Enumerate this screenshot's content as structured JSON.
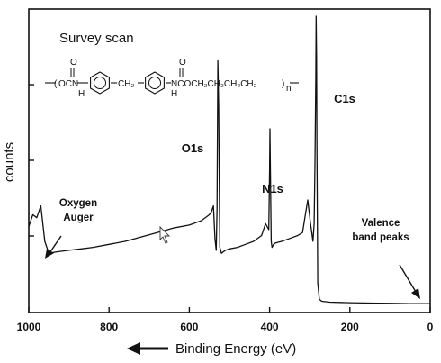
{
  "chart_data": {
    "type": "line",
    "title": "Survey scan",
    "xlabel": "Binding Energy (eV)",
    "ylabel": "counts",
    "xlim": [
      1000,
      0
    ],
    "x_reversed": true,
    "x_ticks": [
      1000,
      800,
      600,
      400,
      200,
      0
    ],
    "grid": false,
    "formula": "—(OCN—⌬—CH₂—⌬—NCOCH₂CH₂CH₂CH₂)ₙ—",
    "series": [
      {
        "x": [
          1000,
          990,
          980,
          975,
          970,
          965,
          960,
          950,
          930,
          900,
          870,
          840,
          800,
          760,
          720,
          680,
          640,
          600,
          570,
          550,
          545,
          540,
          536,
          533,
          531,
          529,
          527,
          524,
          520,
          510,
          500,
          480,
          460,
          440,
          420,
          410,
          402,
          400,
          399,
          398,
          396,
          394,
          390,
          385,
          370,
          350,
          330,
          318,
          312,
          305,
          298,
          292,
          289,
          287,
          285,
          284,
          283,
          282,
          280,
          276,
          270,
          250,
          200,
          150,
          100,
          50,
          0
        ],
        "y": [
          0.29,
          0.33,
          0.32,
          0.34,
          0.36,
          0.3,
          0.24,
          0.2,
          0.205,
          0.21,
          0.215,
          0.22,
          0.23,
          0.24,
          0.255,
          0.27,
          0.285,
          0.295,
          0.31,
          0.33,
          0.34,
          0.36,
          0.25,
          0.21,
          0.35,
          0.85,
          0.7,
          0.22,
          0.2,
          0.21,
          0.215,
          0.22,
          0.23,
          0.24,
          0.26,
          0.3,
          0.28,
          0.48,
          0.62,
          0.48,
          0.24,
          0.22,
          0.23,
          0.235,
          0.24,
          0.25,
          0.26,
          0.27,
          0.32,
          0.38,
          0.3,
          0.24,
          0.3,
          0.5,
          0.78,
          1.0,
          0.86,
          0.55,
          0.1,
          0.045,
          0.038,
          0.035,
          0.033,
          0.032,
          0.031,
          0.03,
          0.03
        ]
      }
    ],
    "annotations": [
      {
        "text_lines": [
          "Oxygen",
          "Auger"
        ],
        "at_x": 965
      },
      {
        "text_lines": [
          "O1s"
        ],
        "at_x": 531
      },
      {
        "text_lines": [
          "N1s"
        ],
        "at_x": 399
      },
      {
        "text_lines": [
          "C1s"
        ],
        "at_x": 284
      },
      {
        "text_lines": [
          "Valence",
          "band peaks"
        ],
        "at_x": 20
      }
    ],
    "arrow_label": "Binding Energy (eV)"
  }
}
